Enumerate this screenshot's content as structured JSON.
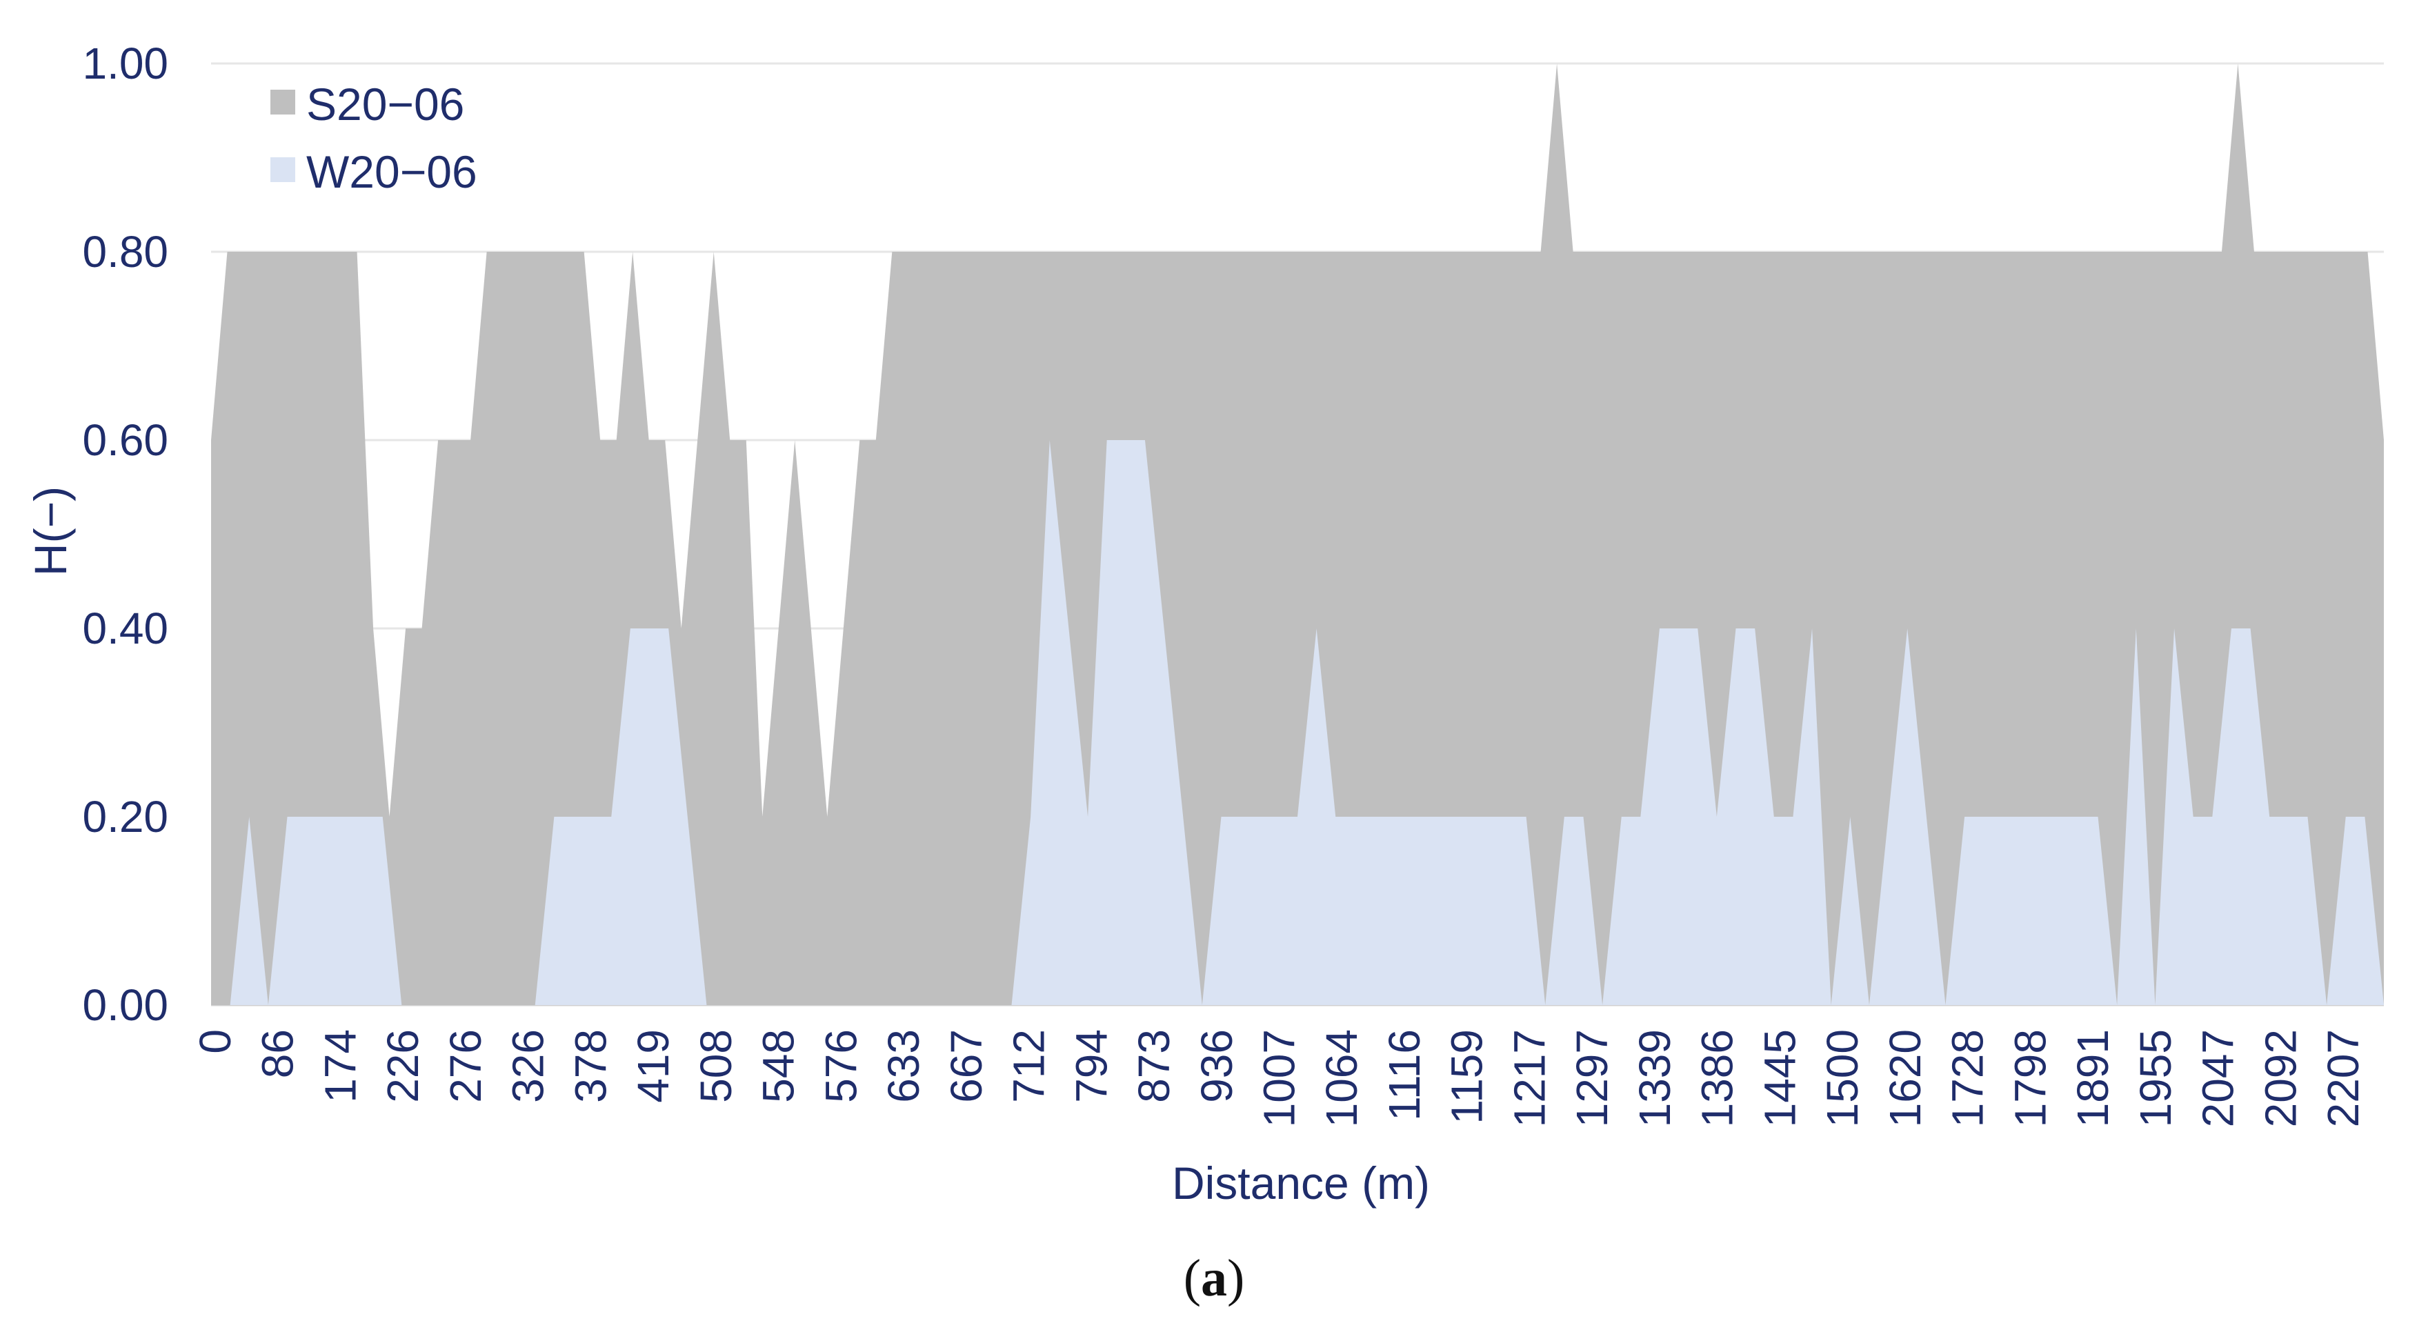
{
  "caption": {
    "open": "(",
    "letter": "a",
    "close": ")"
  },
  "colors": {
    "axis_text": "#1f2d6b",
    "grid": "#e6e6e6",
    "baseline": "#d0d0d0"
  },
  "chart_data": {
    "type": "area",
    "title": "",
    "xlabel": "Distance (m)",
    "ylabel": "H(−)",
    "ylim": [
      0,
      1
    ],
    "yticks": [
      "0.00",
      "0.20",
      "0.40",
      "0.60",
      "0.80",
      "1.00"
    ],
    "grid": true,
    "legend": {
      "placement": "top-left"
    },
    "xtick_labels": [
      "0",
      "86",
      "174",
      "226",
      "276",
      "326",
      "378",
      "419",
      "508",
      "548",
      "576",
      "633",
      "667",
      "712",
      "794",
      "873",
      "936",
      "1007",
      "1064",
      "1116",
      "1159",
      "1217",
      "1297",
      "1339",
      "1386",
      "1445",
      "1500",
      "1620",
      "1728",
      "1798",
      "1891",
      "1955",
      "2047",
      "2092",
      "2207"
    ],
    "series": [
      {
        "name": "S20−06",
        "color": "#bfbfbf",
        "values": [
          0.6,
          0.8,
          0.8,
          0.8,
          0.8,
          0.8,
          0.8,
          0.8,
          0.8,
          0.8,
          0.4,
          0.2,
          0.4,
          0.4,
          0.6,
          0.6,
          0.6,
          0.8,
          0.8,
          0.8,
          0.8,
          0.8,
          0.8,
          0.8,
          0.6,
          0.6,
          0.8,
          0.6,
          0.6,
          0.4,
          0.6,
          0.8,
          0.6,
          0.6,
          0.2,
          0.4,
          0.6,
          0.4,
          0.2,
          0.4,
          0.6,
          0.6,
          0.8,
          0.8,
          0.8,
          0.8,
          0.8,
          0.8,
          0.8,
          0.8,
          0.8,
          0.8,
          0.8,
          0.8,
          0.8,
          0.8,
          0.8,
          0.8,
          0.8,
          0.8,
          0.8,
          0.8,
          0.8,
          0.8,
          0.8,
          0.8,
          0.8,
          0.8,
          0.8,
          0.8,
          0.8,
          0.8,
          0.8,
          0.8,
          0.8,
          0.8,
          0.8,
          0.8,
          0.8,
          0.8,
          0.8,
          0.8,
          0.8,
          1.0,
          0.8,
          0.8,
          0.8,
          0.8,
          0.8,
          0.8,
          0.8,
          0.8,
          0.8,
          0.8,
          0.8,
          0.8,
          0.8,
          0.8,
          0.8,
          0.8,
          0.8,
          0.8,
          0.8,
          0.8,
          0.8,
          0.8,
          0.8,
          0.8,
          0.8,
          0.8,
          0.8,
          0.8,
          0.8,
          0.8,
          0.8,
          0.8,
          0.8,
          0.8,
          0.8,
          0.8,
          0.8,
          0.8,
          0.8,
          0.8,
          0.8,
          1.0,
          0.8,
          0.8,
          0.8,
          0.8,
          0.8,
          0.8,
          0.8,
          0.8,
          0.6
        ]
      },
      {
        "name": "W20−06",
        "color": "#dae3f3",
        "values": [
          0,
          0,
          0.2,
          0,
          0.2,
          0.2,
          0.2,
          0.2,
          0.2,
          0.2,
          0.0,
          0,
          0,
          0,
          0,
          0,
          0,
          0,
          0.2,
          0.2,
          0.2,
          0.2,
          0.4,
          0.4,
          0.4,
          0.2,
          0.0,
          0,
          0,
          0,
          0,
          0,
          0,
          0,
          0,
          0,
          0,
          0,
          0,
          0,
          0,
          0,
          0.0,
          0.2,
          0.6,
          0.4,
          0.2,
          0.6,
          0.6,
          0.6,
          0.4,
          0.2,
          0.0,
          0.2,
          0.2,
          0.2,
          0.2,
          0.2,
          0.4,
          0.2,
          0.2,
          0.2,
          0.2,
          0.2,
          0.2,
          0.2,
          0.2,
          0.2,
          0.2,
          0.2,
          0.0,
          0.2,
          0.2,
          0.0,
          0.2,
          0.2,
          0.4,
          0.4,
          0.4,
          0.2,
          0.4,
          0.4,
          0.2,
          0.2,
          0.4,
          0.0,
          0.2,
          0.0,
          0.2,
          0.4,
          0.2,
          0.0,
          0.2,
          0.2,
          0.2,
          0.2,
          0.2,
          0.2,
          0.2,
          0.2,
          0.0,
          0.4,
          0.0,
          0.4,
          0.2,
          0.2,
          0.4,
          0.4,
          0.2,
          0.2,
          0.2,
          0.0,
          0.2,
          0.2,
          0.0
        ]
      }
    ]
  }
}
